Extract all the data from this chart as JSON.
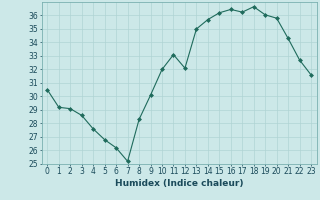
{
  "x": [
    0,
    1,
    2,
    3,
    4,
    5,
    6,
    7,
    8,
    9,
    10,
    11,
    12,
    13,
    14,
    15,
    16,
    17,
    18,
    19,
    20,
    21,
    22,
    23
  ],
  "y": [
    30.5,
    29.2,
    29.1,
    28.6,
    27.6,
    26.8,
    26.2,
    25.2,
    28.3,
    30.1,
    32.0,
    33.1,
    32.1,
    35.0,
    35.7,
    36.2,
    36.45,
    36.25,
    36.65,
    36.05,
    35.8,
    34.3,
    32.7,
    31.6
  ],
  "xlabel": "Humidex (Indice chaleur)",
  "xlim": [
    -0.5,
    23.5
  ],
  "ylim": [
    25,
    37
  ],
  "yticks": [
    25,
    26,
    27,
    28,
    29,
    30,
    31,
    32,
    33,
    34,
    35,
    36
  ],
  "xticks": [
    0,
    1,
    2,
    3,
    4,
    5,
    6,
    7,
    8,
    9,
    10,
    11,
    12,
    13,
    14,
    15,
    16,
    17,
    18,
    19,
    20,
    21,
    22,
    23
  ],
  "line_color": "#1f6b5c",
  "bg_color": "#cce8e8",
  "grid_color": "#b0d4d4",
  "tick_fontsize": 5.5,
  "xlabel_fontsize": 6.5
}
